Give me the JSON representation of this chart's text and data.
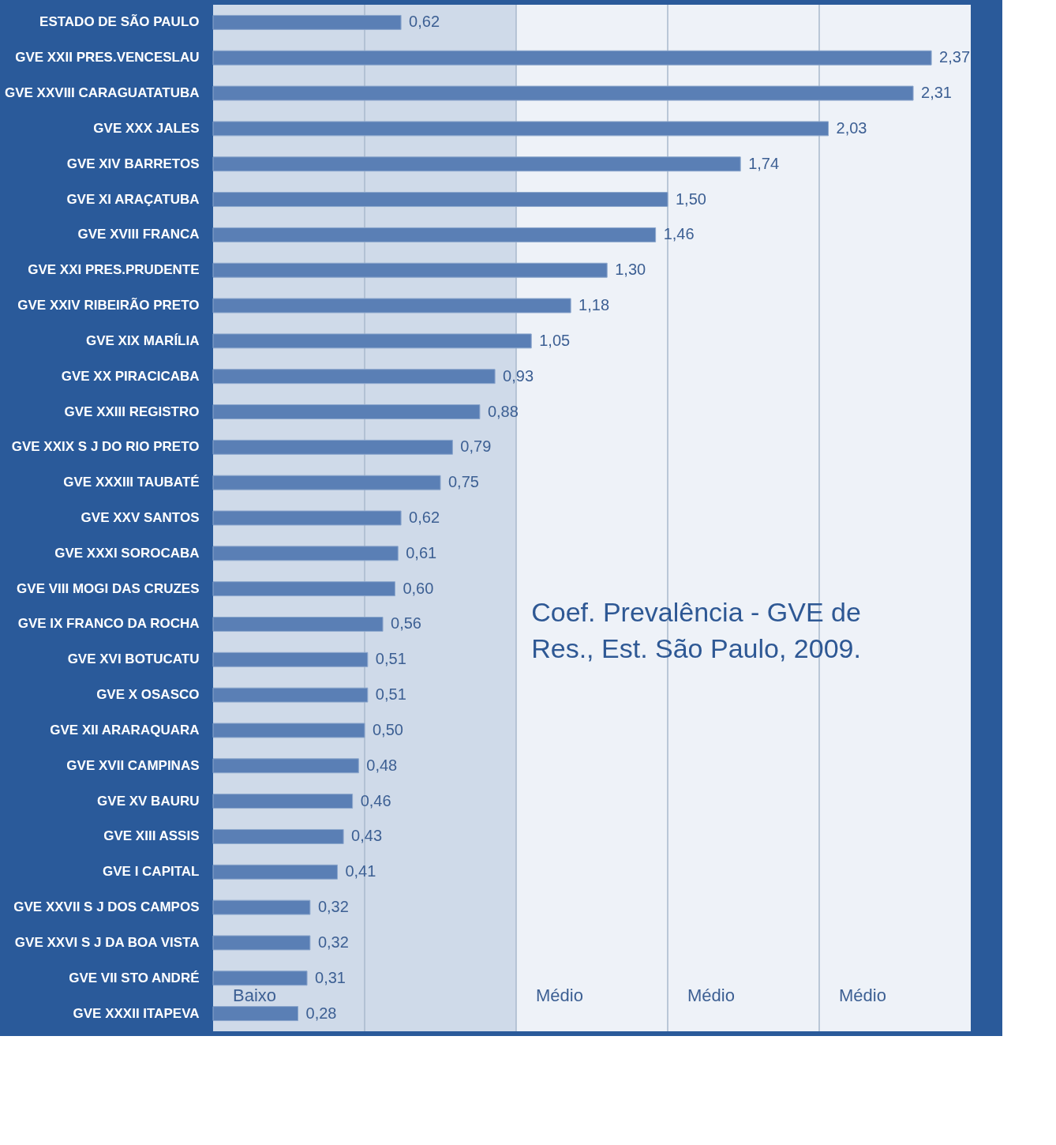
{
  "chart_data": {
    "type": "bar",
    "orientation": "horizontal",
    "title": "Coef. Prevalência - GVE de Res., Est. São Paulo, 2009.",
    "categories": [
      "ESTADO DE SÃO PAULO",
      "GVE XXII PRES.VENCESLAU",
      "GVE XXVIII CARAGUATATUBA",
      "GVE XXX JALES",
      "GVE XIV BARRETOS",
      "GVE XI ARAÇATUBA",
      "GVE XVIII FRANCA",
      "GVE XXI PRES.PRUDENTE",
      "GVE XXIV RIBEIRÃO PRETO",
      "GVE XIX MARÍLIA",
      "GVE XX PIRACICABA",
      "GVE XXIII REGISTRO",
      "GVE XXIX S J DO RIO PRETO",
      "GVE XXXIII TAUBATÉ",
      "GVE XXV SANTOS",
      "GVE XXXI SOROCABA",
      "GVE VIII MOGI DAS CRUZES",
      "GVE IX FRANCO DA ROCHA",
      "GVE XVI BOTUCATU",
      "GVE X OSASCO",
      "GVE XII ARARAQUARA",
      "GVE XVII CAMPINAS",
      "GVE XV BAURU",
      "GVE XIII ASSIS",
      "GVE I CAPITAL",
      "GVE XXVII S J DOS CAMPOS",
      "GVE XXVI S J DA BOA VISTA",
      "GVE VII STO ANDRÉ",
      "GVE XXXII ITAPEVA"
    ],
    "values": [
      0.62,
      2.37,
      2.31,
      2.03,
      1.74,
      1.5,
      1.46,
      1.3,
      1.18,
      1.05,
      0.93,
      0.88,
      0.79,
      0.75,
      0.62,
      0.61,
      0.6,
      0.56,
      0.51,
      0.51,
      0.5,
      0.48,
      0.46,
      0.43,
      0.41,
      0.32,
      0.32,
      0.31,
      0.28
    ],
    "value_labels": [
      "0,62",
      "2,37",
      "2,31",
      "2,03",
      "1,74",
      "1,50",
      "1,46",
      "1,30",
      "1,18",
      "1,05",
      "0,93",
      "0,88",
      "0,79",
      "0,75",
      "0,62",
      "0,61",
      "0,60",
      "0,56",
      "0,51",
      "0,51",
      "0,50",
      "0,48",
      "0,46",
      "0,43",
      "0,41",
      "0,32",
      "0,32",
      "0,31",
      "0,28"
    ],
    "color": "#5a7fb5",
    "xlim": [
      0,
      2.5
    ],
    "xticks": [
      {
        "value": 0.5,
        "label": null
      },
      {
        "value": 1.0,
        "label": null
      },
      {
        "value": 1.5,
        "label": null
      },
      {
        "value": 2.0,
        "label": null
      }
    ],
    "grid": "x",
    "tick_labels": "y",
    "bands": [
      {
        "axis": "x",
        "from": 0,
        "to": 1.0,
        "label": "Baixo",
        "color": "#c4d1e4"
      }
    ],
    "annotations": [
      "Médio",
      "Médio",
      "Médio"
    ]
  }
}
